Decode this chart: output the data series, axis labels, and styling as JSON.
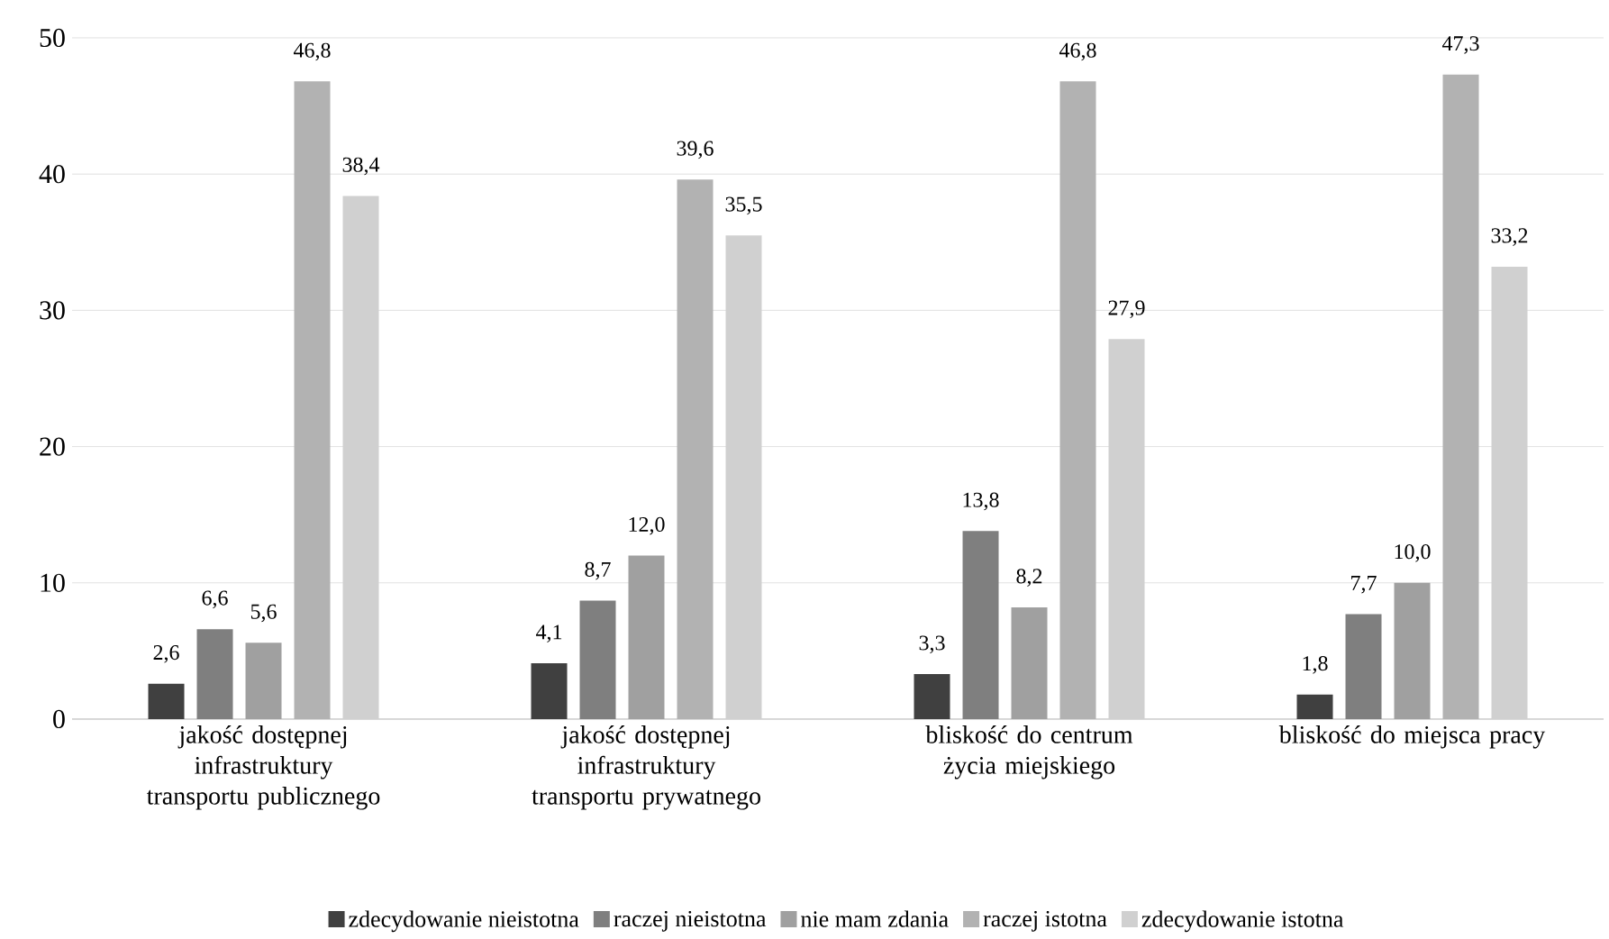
{
  "chart_data": {
    "type": "bar",
    "categories": [
      "jakość dostępnej infrastruktury transportu publicznego",
      "jakość dostępnej infrastruktury transportu prywatnego",
      "bliskość do centrum życia miejskiego",
      "bliskość do miejsca pracy"
    ],
    "series": [
      {
        "name": "zdecydowanie nieistotna",
        "color": "#404040",
        "values": [
          2.6,
          4.1,
          3.3,
          1.8
        ],
        "value_labels": [
          "2,6",
          "4,1",
          "3,3",
          "1,8"
        ]
      },
      {
        "name": "raczej nieistotna",
        "color": "#7f7f7f",
        "values": [
          6.6,
          8.7,
          13.8,
          7.7
        ],
        "value_labels": [
          "6,6",
          "8,7",
          "13,8",
          "7,7"
        ]
      },
      {
        "name": "nie mam zdania",
        "color": "#a0a0a0",
        "values": [
          5.6,
          12.0,
          8.2,
          10.0
        ],
        "value_labels": [
          "5,6",
          "12,0",
          "8,2",
          "10,0"
        ]
      },
      {
        "name": "raczej istotna",
        "color": "#b2b2b2",
        "values": [
          46.8,
          39.6,
          46.8,
          47.3
        ],
        "value_labels": [
          "46,8",
          "39,6",
          "46,8",
          "47,3"
        ]
      },
      {
        "name": "zdecydowanie istotna",
        "color": "#d0d0d0",
        "values": [
          38.4,
          35.5,
          27.9,
          33.2
        ],
        "value_labels": [
          "38,4",
          "35,5",
          "27,9",
          "33,2"
        ]
      }
    ],
    "ylim": [
      0,
      50
    ],
    "yticks": [
      0,
      10,
      20,
      30,
      40,
      50
    ],
    "grid": "y",
    "legend": "bottom"
  }
}
